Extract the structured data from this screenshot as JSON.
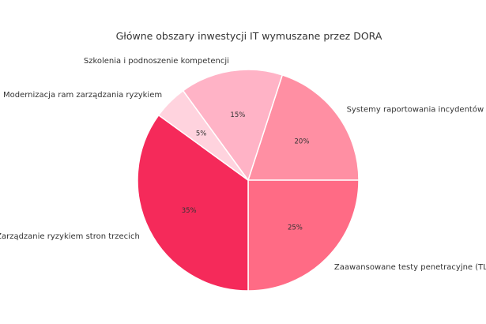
{
  "chart_data": {
    "type": "pie",
    "title": "Główne obszary inwestycji IT wymuszane przez DORA",
    "categories": [
      "Systemy raportowania incydentów",
      "Zaawansowane testy penetracyjne (TLPT)",
      "Zarządzanie ryzykiem stron trzecich",
      "Modernizacja ram zarządzania ryzykiem",
      "Szkolenia i podnoszenie kompetencji"
    ],
    "values": [
      20,
      25,
      35,
      5,
      15
    ],
    "value_labels": [
      "20%",
      "25%",
      "35%",
      "5%",
      "15%"
    ],
    "colors": [
      "#ff8fa3",
      "#ff6b85",
      "#f52a5a",
      "#ffd3de",
      "#ffb3c6"
    ],
    "legend": "none"
  }
}
